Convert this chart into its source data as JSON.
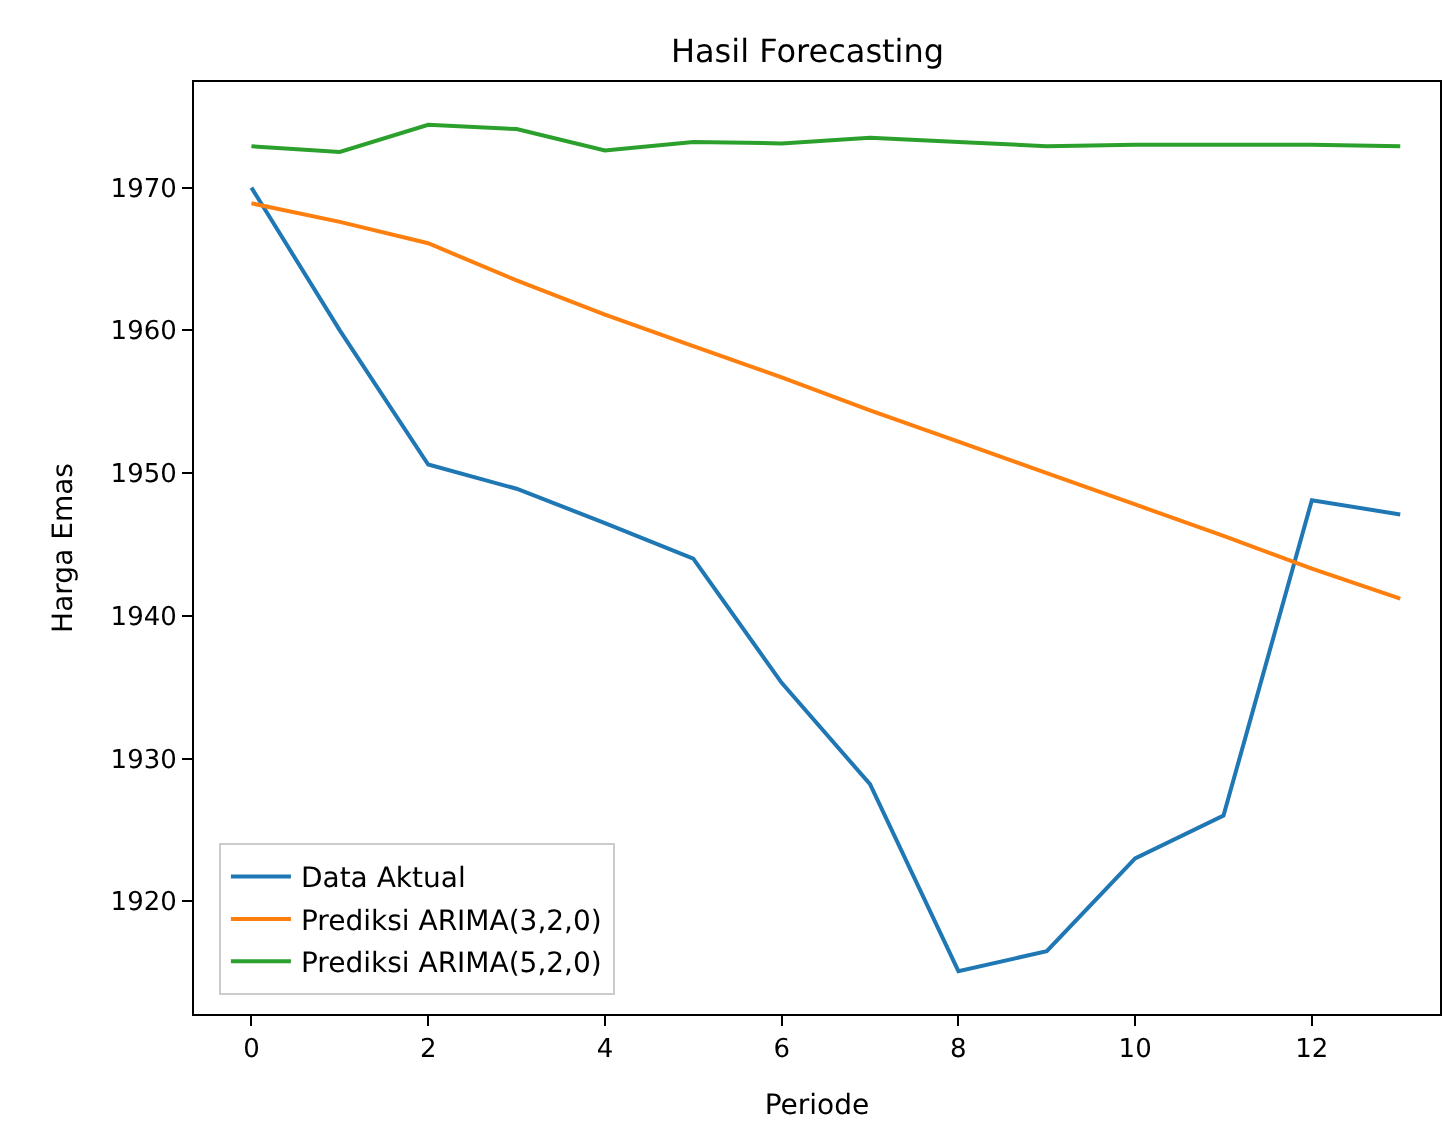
{
  "chart_data": {
    "type": "line",
    "title": "Hasil Forecasting",
    "xlabel": "Periode",
    "ylabel": "Harga Emas",
    "x": [
      0,
      1,
      2,
      3,
      4,
      5,
      6,
      7,
      8,
      9,
      10,
      11,
      12,
      13
    ],
    "xlim": [
      -0.65,
      13.45
    ],
    "xticks": [
      0,
      2,
      4,
      6,
      8,
      10,
      12
    ],
    "ylim": [
      1912.1,
      1977.4
    ],
    "yticks": [
      1920,
      1930,
      1940,
      1950,
      1960,
      1970
    ],
    "legend": "bottom left",
    "marker": "none",
    "line_style": "solid",
    "series": [
      {
        "name": "Data Aktual",
        "color": "#1f77b4",
        "values": [
          1970,
          1960,
          1950.6,
          1948.9,
          1946.5,
          1944,
          1935.3,
          1928.2,
          1915.1,
          1916.5,
          1923,
          1926,
          1948.1,
          1947.1
        ]
      },
      {
        "name": "Prediksi ARIMA(3,2,0)",
        "color": "#ff7f0e",
        "values": [
          1968.9,
          1967.6,
          1966.1,
          1963.5,
          1961.1,
          1958.9,
          1956.7,
          1954.4,
          1952.2,
          1950,
          1947.8,
          1945.6,
          1943.3,
          1941.2
        ]
      },
      {
        "name": "Prediksi ARIMA(5,2,0)",
        "color": "#2ca02c",
        "values": [
          1972.9,
          1972.5,
          1974.4,
          1974.1,
          1972.6,
          1973.2,
          1973.1,
          1973.5,
          1973.2,
          1972.9,
          1973.0,
          1973.0,
          1973.0,
          1972.9
        ]
      }
    ]
  }
}
